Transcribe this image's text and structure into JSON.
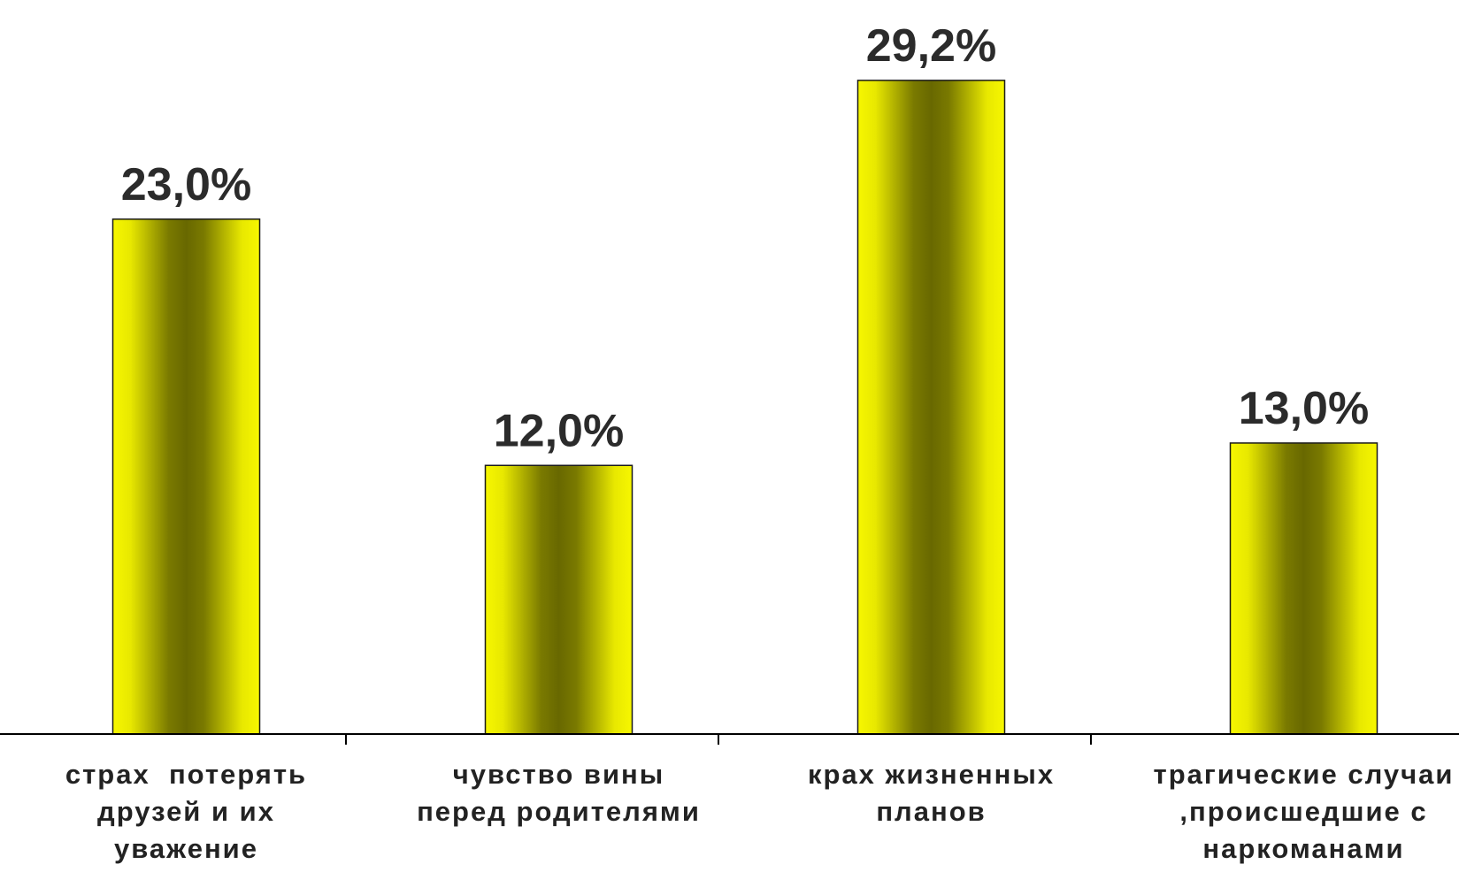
{
  "chart_data": {
    "type": "bar",
    "categories": [
      "страх  потерять друзей и их уважение",
      "чувство вины перед родителями",
      "крах жизненных планов",
      "трагические случаи ,происшедшие с наркоманами"
    ],
    "category_lines": [
      [
        "страх  потерять",
        "друзей и их",
        "уважение"
      ],
      [
        "чувство вины",
        "перед родителями"
      ],
      [
        "крах жизненных",
        "планов"
      ],
      [
        "трагические случаи",
        ",происшедшие с",
        "наркоманами"
      ]
    ],
    "values": [
      23.0,
      12.0,
      29.2,
      13.0
    ],
    "data_labels": [
      "23,0%",
      "12,0%",
      "29,2%",
      "13,0%"
    ],
    "ylim": [
      0,
      32
    ],
    "grid": false,
    "title": "",
    "xlabel": "",
    "ylabel": ""
  },
  "colors": {
    "bar_edge": "#f5f500",
    "bar_center": "#6b6b00",
    "axis": "#000000",
    "label": "#2b2b2b"
  }
}
